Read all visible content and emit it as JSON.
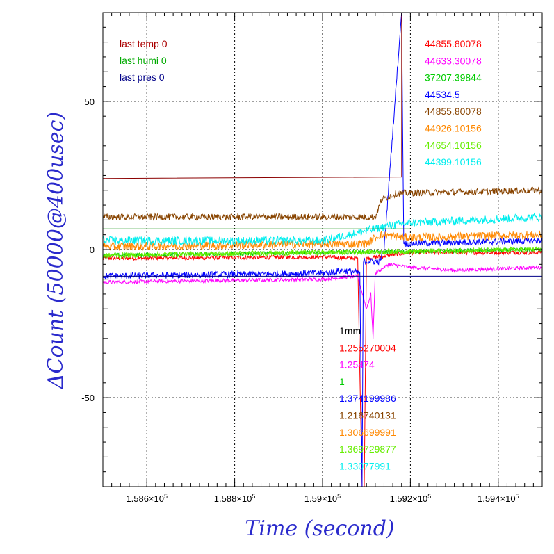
{
  "chart_data": {
    "type": "line",
    "xlabel": "Time (second)",
    "ylabel": "ΔCount (50000@400usec)",
    "xlim": [
      158500,
      159500
    ],
    "ylim": [
      -80,
      80
    ],
    "x_ticks": [
      {
        "value": 158600,
        "mantissa": "1.586",
        "exp": "5"
      },
      {
        "value": 158800,
        "mantissa": "1.588",
        "exp": "5"
      },
      {
        "value": 159000,
        "mantissa": "1.59",
        "exp": "5"
      },
      {
        "value": 159200,
        "mantissa": "1.592",
        "exp": "5"
      },
      {
        "value": 159400,
        "mantissa": "1.594",
        "exp": "5"
      }
    ],
    "y_ticks": [
      {
        "value": 50,
        "label": "50"
      },
      {
        "value": 0,
        "label": "0"
      },
      {
        "value": -50,
        "label": "-50"
      }
    ],
    "grid": true,
    "legend_top_left": [
      {
        "text": "last temp 0",
        "color": "#aa0000"
      },
      {
        "text": "last humi 0",
        "color": "#00aa00"
      },
      {
        "text": "last pres 0",
        "color": "#000088"
      }
    ],
    "legend_top_right": [
      {
        "text": "44855.80078",
        "color": "#ff0000"
      },
      {
        "text": "44633.30078",
        "color": "#ff00ff"
      },
      {
        "text": "37207.39844",
        "color": "#00cc00"
      },
      {
        "text": "44534.5",
        "color": "#0000ff"
      },
      {
        "text": "44855.80078",
        "color": "#884400"
      },
      {
        "text": "44926.10156",
        "color": "#ff8800"
      },
      {
        "text": "44654.10156",
        "color": "#66ee00"
      },
      {
        "text": "44399.10156",
        "color": "#00eeee"
      }
    ],
    "legend_middle": [
      {
        "text": "1mm",
        "color": "#000000"
      },
      {
        "text": "1.255270004",
        "color": "#ff0000"
      },
      {
        "text": "1.25474",
        "color": "#ff00ff"
      },
      {
        "text": "1",
        "color": "#00cc00"
      },
      {
        "text": "1.374199986",
        "color": "#0000ff"
      },
      {
        "text": "1.216740131",
        "color": "#884400"
      },
      {
        "text": "1.306699991",
        "color": "#ff8800"
      },
      {
        "text": "1.369729877",
        "color": "#66ee00"
      },
      {
        "text": "1.33077991",
        "color": "#00eeee"
      }
    ],
    "series": [
      {
        "color": "#ff0000",
        "width": 1,
        "noise": 0.7,
        "data": [
          [
            158500,
            -3
          ],
          [
            159000,
            -2.5
          ],
          [
            159080,
            -3
          ],
          [
            159090,
            -80
          ],
          [
            159095,
            -80
          ],
          [
            159100,
            -3
          ],
          [
            159150,
            -2
          ],
          [
            159200,
            -1
          ],
          [
            159500,
            -1
          ]
        ]
      },
      {
        "color": "#ff00ff",
        "width": 1,
        "noise": 0.6,
        "data": [
          [
            158500,
            -11
          ],
          [
            159000,
            -10
          ],
          [
            159080,
            -9
          ],
          [
            159100,
            -20
          ],
          [
            159110,
            -15
          ],
          [
            159115,
            -30
          ],
          [
            159120,
            -8
          ],
          [
            159150,
            -5
          ],
          [
            159200,
            -6
          ],
          [
            159300,
            -7
          ],
          [
            159500,
            -6
          ]
        ]
      },
      {
        "color": "#00cc00",
        "width": 1,
        "noise": 0.7,
        "data": [
          [
            158500,
            -2
          ],
          [
            159500,
            0
          ]
        ]
      },
      {
        "color": "#0000ff",
        "width": 1,
        "noise": 1.1,
        "data": [
          [
            158500,
            -9
          ],
          [
            159000,
            -8
          ],
          [
            159050,
            -7
          ],
          [
            159085,
            -8
          ],
          [
            159090,
            -80
          ],
          [
            159093,
            -4
          ],
          [
            159130,
            -4
          ],
          [
            159140,
            0
          ],
          [
            159180,
            80
          ],
          [
            159185,
            2
          ],
          [
            159500,
            3
          ]
        ]
      },
      {
        "color": "#884400",
        "width": 1,
        "noise": 1.1,
        "data": [
          [
            158500,
            11
          ],
          [
            159000,
            11
          ],
          [
            159120,
            11
          ],
          [
            159135,
            17
          ],
          [
            159170,
            19
          ],
          [
            159500,
            20
          ]
        ]
      },
      {
        "color": "#ff8800",
        "width": 1,
        "noise": 1.4,
        "data": [
          [
            158500,
            1
          ],
          [
            159100,
            2
          ],
          [
            159130,
            5
          ],
          [
            159200,
            4
          ],
          [
            159500,
            5
          ]
        ]
      },
      {
        "color": "#66ee00",
        "width": 1,
        "noise": 0.9,
        "data": [
          [
            158500,
            -2
          ],
          [
            159500,
            0
          ]
        ]
      },
      {
        "color": "#00eeee",
        "width": 1,
        "noise": 1.4,
        "data": [
          [
            158500,
            3
          ],
          [
            159000,
            3
          ],
          [
            159150,
            8
          ],
          [
            159200,
            9
          ],
          [
            159500,
            11
          ]
        ]
      },
      {
        "color": "#8b0000",
        "width": 1,
        "noise": 0,
        "data": [
          [
            158500,
            24
          ],
          [
            159180,
            24.5
          ],
          [
            159180,
            80
          ]
        ]
      },
      {
        "color": "#008800",
        "width": 1,
        "noise": 0,
        "data": [
          [
            158500,
            7
          ],
          [
            159200,
            7
          ]
        ]
      },
      {
        "color": "#000088",
        "width": 1,
        "noise": 0,
        "data": [
          [
            158500,
            -9
          ],
          [
            159500,
            -9
          ]
        ]
      }
    ]
  }
}
